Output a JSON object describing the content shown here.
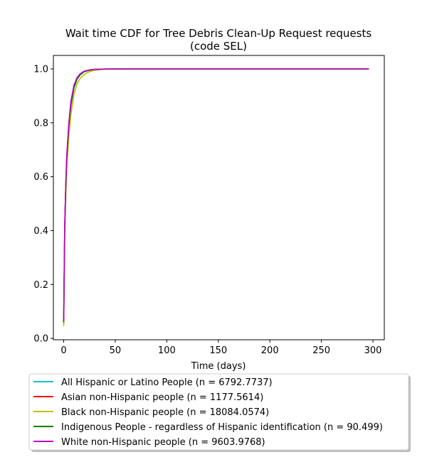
{
  "chart_data": {
    "type": "line",
    "title_line1": "Wait time CDF for Tree Debris Clean-Up Request  requests",
    "title_line2": "(code SEL)",
    "xlabel": "Time (days)",
    "ylabel": "",
    "xlim": [
      -10,
      311
    ],
    "ylim": [
      -0.005,
      1.05
    ],
    "xticks": [
      0,
      50,
      100,
      150,
      200,
      250,
      300
    ],
    "yticks": [
      0.0,
      0.2,
      0.4,
      0.6,
      0.8,
      1.0
    ],
    "xtick_labels": [
      "0",
      "50",
      "100",
      "150",
      "200",
      "250",
      "300"
    ],
    "ytick_labels": [
      "0.0",
      "0.2",
      "0.4",
      "0.6",
      "0.8",
      "1.0"
    ],
    "grid": false,
    "legend_placement": "below plot",
    "x": [
      0,
      1,
      2,
      3,
      5,
      7,
      10,
      13,
      16,
      20,
      25,
      30,
      40,
      60,
      100,
      200,
      296
    ],
    "series": [
      {
        "name": "All Hispanic or Latino People (n = 6792.7737)",
        "color": "#17becf",
        "values": [
          0.06,
          0.4,
          0.55,
          0.66,
          0.78,
          0.86,
          0.93,
          0.963,
          0.978,
          0.99,
          0.995,
          0.998,
          0.9995,
          1.0,
          1.0,
          1.0,
          1.0
        ]
      },
      {
        "name": "Asian non-Hispanic people (n = 1177.5614)",
        "color": "#ff0000",
        "values": [
          0.055,
          0.41,
          0.56,
          0.67,
          0.79,
          0.87,
          0.935,
          0.965,
          0.98,
          0.99,
          0.996,
          0.998,
          0.9995,
          1.0,
          1.0,
          1.0,
          1.0
        ]
      },
      {
        "name": "Black non-Hispanic people (n = 18084.0574)",
        "color": "#bfbf00",
        "values": [
          0.045,
          0.37,
          0.52,
          0.63,
          0.75,
          0.83,
          0.905,
          0.945,
          0.965,
          0.98,
          0.99,
          0.995,
          0.999,
          1.0,
          1.0,
          1.0,
          1.0
        ]
      },
      {
        "name": "Indigenous People - regardless of Hispanic identification (n = 90.499)",
        "color": "#008000",
        "values": [
          0.06,
          0.41,
          0.56,
          0.67,
          0.79,
          0.87,
          0.93,
          0.962,
          0.978,
          0.99,
          0.995,
          0.998,
          0.9995,
          1.0,
          1.0,
          1.0,
          1.0
        ]
      },
      {
        "name": "White non-Hispanic people (n = 9603.9768)",
        "color": "#bf00bf",
        "values": [
          0.065,
          0.42,
          0.57,
          0.68,
          0.8,
          0.88,
          0.94,
          0.968,
          0.982,
          0.992,
          0.996,
          0.998,
          0.9995,
          1.0,
          1.0,
          1.0,
          1.0
        ]
      }
    ]
  }
}
